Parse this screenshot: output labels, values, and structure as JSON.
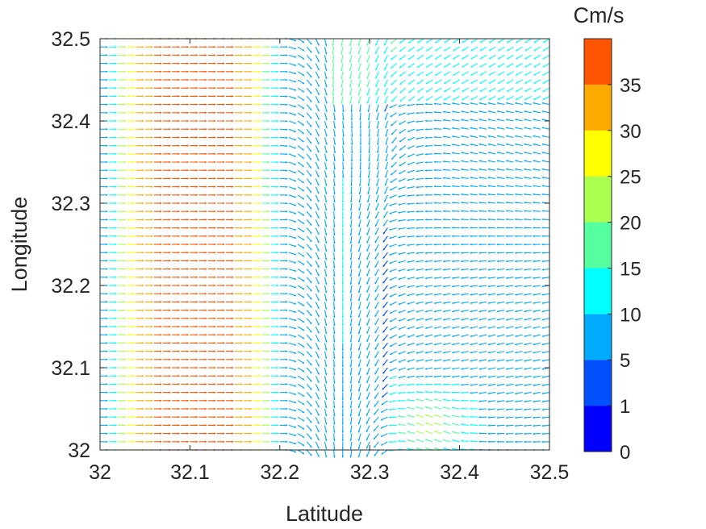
{
  "chart_data": {
    "type": "quiver",
    "xlabel": "Latitude",
    "ylabel": "Longitude",
    "xlim": [
      32,
      32.5
    ],
    "ylim": [
      32,
      32.5
    ],
    "xticks": [
      "32",
      "32.1",
      "32.2",
      "32.3",
      "32.4",
      "32.5"
    ],
    "yticks": [
      "32",
      "32.1",
      "32.2",
      "32.3",
      "32.4",
      "32.5"
    ],
    "grid": false,
    "colorbar": {
      "title": "Cm/s",
      "ticks": [
        "0",
        "1",
        "5",
        "10",
        "15",
        "20",
        "25",
        "30",
        "35"
      ],
      "bands": [
        {
          "from": 0,
          "to": 1,
          "color": "#0000ff"
        },
        {
          "from": 1,
          "to": 5,
          "color": "#0050ff"
        },
        {
          "from": 5,
          "to": 10,
          "color": "#00aaff"
        },
        {
          "from": 10,
          "to": 15,
          "color": "#00ffff"
        },
        {
          "from": 15,
          "to": 20,
          "color": "#55ff9f"
        },
        {
          "from": 20,
          "to": 25,
          "color": "#aaff4f"
        },
        {
          "from": 25,
          "to": 30,
          "color": "#ffff00"
        },
        {
          "from": 30,
          "to": 35,
          "color": "#ffaa00"
        },
        {
          "from": 35,
          "to": 40,
          "color": "#ff5500"
        }
      ]
    },
    "field": {
      "grid_nx": 51,
      "grid_ny": 51,
      "description": "Strong eastward current (~35 Cm/s) along x=32.05-32.17, decaying eastward to near-zero speeds past x=32.25; southward convergent flow near x=32.26-32.30; weak westward/southwestward flow in eastern half; a stagnation point near (32.3, 32.38) and a moderate (~20 Cm/s) patch near (32.37, 32.03)"
    }
  }
}
